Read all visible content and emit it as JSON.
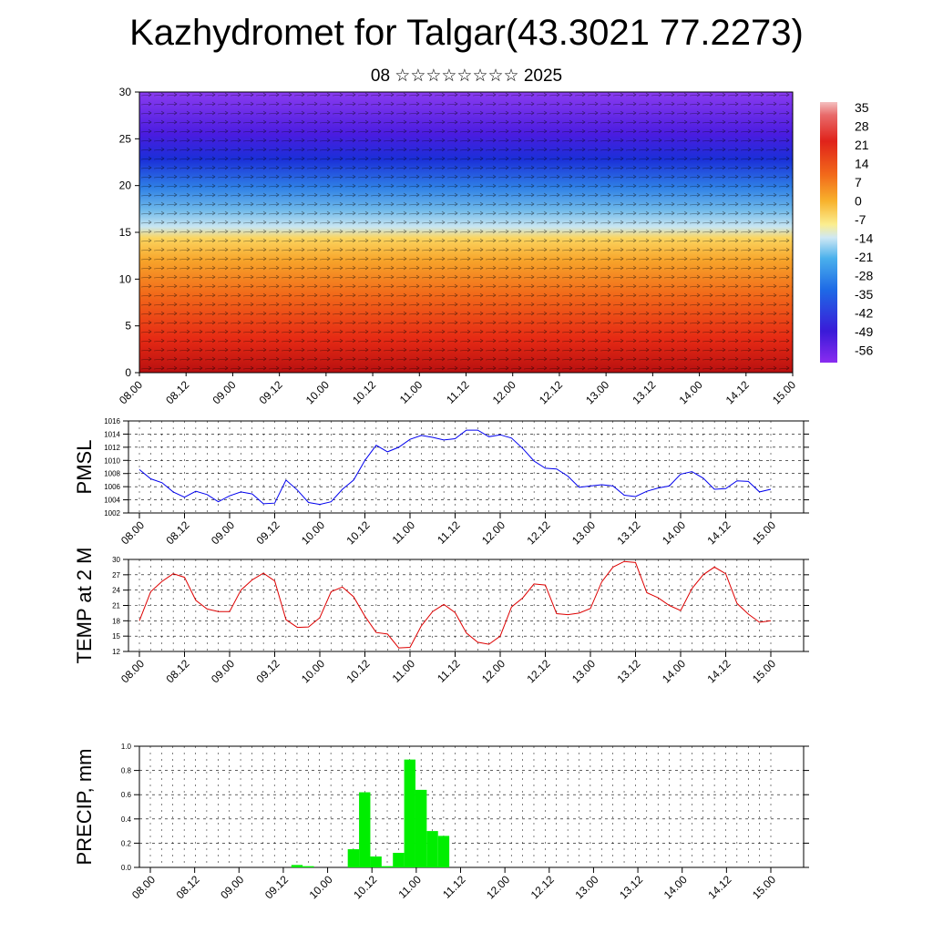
{
  "header": {
    "title": "Kazhydromet for Talgar(43.3021 77.2273)",
    "subtitle": "08 ☆☆☆☆☆☆☆☆ 2025"
  },
  "time_ticks": [
    "08.00",
    "08.12",
    "09.00",
    "09.12",
    "10.00",
    "10.12",
    "11.00",
    "11.12",
    "12.00",
    "12.12",
    "13.00",
    "13.12",
    "14.00",
    "14.12",
    "15.00"
  ],
  "colorbar": {
    "labels": [
      "35",
      "28",
      "21",
      "14",
      "7",
      "0",
      "-7",
      "-14",
      "-21",
      "-28",
      "-35",
      "-42",
      "-49",
      "-56"
    ]
  },
  "chart_data": [
    {
      "type": "heatmap",
      "title": "",
      "ylim": [
        0,
        30
      ],
      "yticks": [
        "0",
        "5",
        "10",
        "15",
        "20",
        "25",
        "30"
      ],
      "description_layers": "temperature field with wind vectors",
      "color_levels": [
        35,
        28,
        21,
        14,
        7,
        0,
        -7,
        -14,
        -21,
        -28,
        -35,
        -42,
        -49,
        -56
      ]
    },
    {
      "type": "line",
      "ylabel": "PMSL",
      "ylim": [
        1002,
        1016
      ],
      "yticks": [
        "1002",
        "1004",
        "1006",
        "1008",
        "1010",
        "1012",
        "1014",
        "1016"
      ],
      "color": "#0000ee",
      "values": [
        1008.6,
        1007.2,
        1006.6,
        1005.2,
        1004.4,
        1005.3,
        1004.8,
        1003.7,
        1004.6,
        1005.2,
        1004.9,
        1003.4,
        1003.5,
        1007.0,
        1005.5,
        1003.6,
        1003.3,
        1003.7,
        1005.6,
        1007.0,
        1010.0,
        1012.3,
        1011.3,
        1012.0,
        1013.2,
        1013.8,
        1013.5,
        1013.1,
        1013.3,
        1014.6,
        1014.6,
        1013.6,
        1013.9,
        1013.4,
        1011.8,
        1009.9,
        1008.8,
        1008.7,
        1007.6,
        1005.9,
        1006.1,
        1006.3,
        1006.1,
        1004.7,
        1004.5,
        1005.3,
        1005.8,
        1006.1,
        1007.9,
        1008.3,
        1007.3,
        1005.6,
        1005.7,
        1006.9,
        1006.8,
        1005.2,
        1005.6
      ]
    },
    {
      "type": "line",
      "ylabel": "TEMP at 2 M",
      "ylim": [
        12,
        30
      ],
      "yticks": [
        "12",
        "15",
        "18",
        "21",
        "24",
        "27",
        "30"
      ],
      "color": "#dd0000",
      "values": [
        18.0,
        23.7,
        25.7,
        27.2,
        26.5,
        22.0,
        20.3,
        19.8,
        19.8,
        24.0,
        26.0,
        27.3,
        25.8,
        18.2,
        16.7,
        16.8,
        18.6,
        23.7,
        24.6,
        22.7,
        18.9,
        15.7,
        15.4,
        12.7,
        12.8,
        17.0,
        19.8,
        21.2,
        19.6,
        15.6,
        13.8,
        13.4,
        15.0,
        20.7,
        22.5,
        25.2,
        25.0,
        19.4,
        19.2,
        19.5,
        20.4,
        25.6,
        28.5,
        29.6,
        29.4,
        23.5,
        22.5,
        21.0,
        20.0,
        24.3,
        27.0,
        28.5,
        27.2,
        21.4,
        19.3,
        17.7,
        18.0
      ]
    },
    {
      "type": "bar",
      "ylabel": "PRECIP, mm",
      "ylim": [
        0,
        1.0
      ],
      "yticks": [
        "0.0",
        "0.2",
        "0.4",
        "0.6",
        "0.8",
        "1.0"
      ],
      "color": "#00ee00",
      "values": [
        0,
        0,
        0,
        0,
        0,
        0,
        0,
        0,
        0,
        0,
        0,
        0,
        0,
        0.02,
        0.01,
        0,
        0,
        0,
        0.15,
        0.62,
        0.09,
        0.01,
        0.12,
        0.89,
        0.64,
        0.3,
        0.26,
        0,
        0,
        0,
        0,
        0,
        0,
        0,
        0,
        0,
        0,
        0,
        0,
        0,
        0,
        0,
        0,
        0,
        0,
        0,
        0,
        0,
        0,
        0,
        0,
        0,
        0,
        0,
        0,
        0
      ]
    }
  ]
}
